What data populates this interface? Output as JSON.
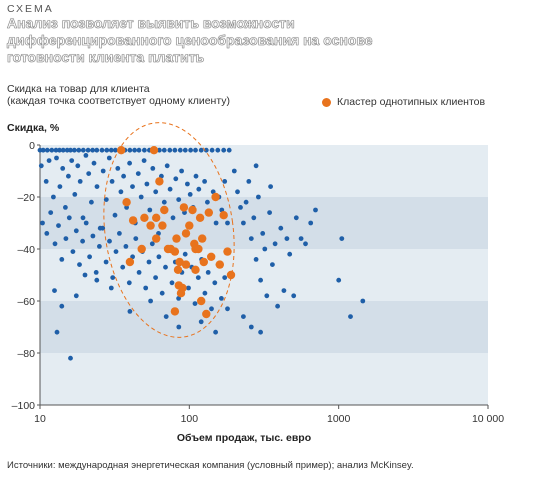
{
  "header": {
    "kicker": "СХЕМА",
    "title": "Анализ позволяет выявить возможности дифференцированного ценообразования на основе готовности клиента платить"
  },
  "chart_header": {
    "subtitle_line1": "Скидка на товар для клиента",
    "subtitle_line2": "(каждая точка соответствует одному клиенту)"
  },
  "footer": {
    "sources": "Источники: международная энергетическая компания (условный пример); анализ McKinsey."
  },
  "colors": {
    "client_point": "#1f5fa8",
    "cluster_point": "#e8731d",
    "band_light": "#e4ecf2",
    "band_dark": "#d3dee8",
    "ellipse": "#e8731d"
  },
  "chart_data": {
    "type": "scatter",
    "title": "Скидка, %",
    "xlabel": "Объем продаж, тыс. евро",
    "ylabel": "Скидка, %",
    "xscale": "log",
    "xlim": [
      10,
      10000
    ],
    "ylim": [
      -100,
      0
    ],
    "xticks": [
      10,
      100,
      1000,
      10000
    ],
    "xtick_labels": [
      "10",
      "100",
      "1000",
      "10 000"
    ],
    "yticks": [
      0,
      -20,
      -40,
      -60,
      -80,
      -100
    ],
    "ytick_labels": [
      "0",
      "–20",
      "–40",
      "–60",
      "–80",
      "–100"
    ],
    "grid": false,
    "legend": {
      "position": "top-right",
      "label": "Кластер однотипных клиентов"
    },
    "series": [
      {
        "name": "",
        "points": [
          [
            10.0,
            -2
          ],
          [
            10.5,
            -2
          ],
          [
            11.2,
            -2
          ],
          [
            12.0,
            -2
          ],
          [
            12.8,
            -2
          ],
          [
            13.5,
            -2
          ],
          [
            14.3,
            -2
          ],
          [
            15.2,
            -2
          ],
          [
            16.0,
            -2
          ],
          [
            17.0,
            -2
          ],
          [
            18.2,
            -2
          ],
          [
            19.5,
            -2
          ],
          [
            21.0,
            -2
          ],
          [
            22.5,
            -2
          ],
          [
            24.0,
            -2
          ],
          [
            26.0,
            -2
          ],
          [
            28.0,
            -2
          ],
          [
            30.0,
            -2
          ],
          [
            32.0,
            -2
          ],
          [
            34.5,
            -2
          ],
          [
            37.0,
            -2
          ],
          [
            40.0,
            -2
          ],
          [
            43.0,
            -2
          ],
          [
            46.0,
            -2
          ],
          [
            50.0,
            -2
          ],
          [
            54.0,
            -2
          ],
          [
            58.0,
            -2
          ],
          [
            63.0,
            -2
          ],
          [
            68.0,
            -2
          ],
          [
            74.0,
            -2
          ],
          [
            80.0,
            -2
          ],
          [
            87.0,
            -2
          ],
          [
            94.0,
            -2
          ],
          [
            102.0,
            -2
          ],
          [
            110.0,
            -2
          ],
          [
            120.0,
            -2
          ],
          [
            130.0,
            -2
          ],
          [
            142.0,
            -2
          ],
          [
            155.0,
            -2
          ],
          [
            170.0,
            -2
          ],
          [
            185.0,
            -2
          ],
          [
            10.2,
            -8
          ],
          [
            11.0,
            -14
          ],
          [
            11.5,
            -6
          ],
          [
            12.3,
            -20
          ],
          [
            12.9,
            -5
          ],
          [
            13.6,
            -16
          ],
          [
            14.2,
            -9
          ],
          [
            14.8,
            -24
          ],
          [
            15.5,
            -12
          ],
          [
            16.3,
            -6
          ],
          [
            17.1,
            -19
          ],
          [
            17.9,
            -8
          ],
          [
            18.6,
            -14
          ],
          [
            19.4,
            -28
          ],
          [
            20.3,
            -4
          ],
          [
            21.2,
            -11
          ],
          [
            22.1,
            -22
          ],
          [
            23.0,
            -7
          ],
          [
            24.1,
            -16
          ],
          [
            25.3,
            -32
          ],
          [
            26.5,
            -10
          ],
          [
            27.8,
            -21
          ],
          [
            29.1,
            -5
          ],
          [
            30.4,
            -14
          ],
          [
            31.8,
            -27
          ],
          [
            33.2,
            -9
          ],
          [
            34.8,
            -18
          ],
          [
            36.3,
            -12
          ],
          [
            38.0,
            -24
          ],
          [
            39.8,
            -7
          ],
          [
            41.6,
            -16
          ],
          [
            43.5,
            -30
          ],
          [
            45.5,
            -11
          ],
          [
            47.6,
            -20
          ],
          [
            49.8,
            -6
          ],
          [
            52.0,
            -15
          ],
          [
            54.4,
            -25
          ],
          [
            56.9,
            -9
          ],
          [
            59.5,
            -18
          ],
          [
            62.2,
            -34
          ],
          [
            65.0,
            -12
          ],
          [
            68.0,
            -22
          ],
          [
            71.1,
            -8
          ],
          [
            74.3,
            -17
          ],
          [
            77.7,
            -28
          ],
          [
            81.2,
            -13
          ],
          [
            84.9,
            -21
          ],
          [
            88.8,
            -10
          ],
          [
            92.8,
            -26
          ],
          [
            97.0,
            -15
          ],
          [
            101.4,
            -19
          ],
          [
            106.0,
            -24
          ],
          [
            110.8,
            -12
          ],
          [
            115.8,
            -17
          ],
          [
            121.0,
            -28
          ],
          [
            126.5,
            -14
          ],
          [
            132.2,
            -22
          ],
          [
            138.2,
            -26
          ],
          [
            144.5,
            -18
          ],
          [
            151.0,
            -30
          ],
          [
            157.8,
            -20
          ],
          [
            165.0,
            -25
          ],
          [
            172.4,
            -14
          ],
          [
            180.2,
            -30
          ],
          [
            10.4,
            -30
          ],
          [
            11.1,
            -34
          ],
          [
            11.8,
            -26
          ],
          [
            12.6,
            -38
          ],
          [
            13.3,
            -31
          ],
          [
            14.0,
            -44
          ],
          [
            14.9,
            -36
          ],
          [
            15.7,
            -28
          ],
          [
            16.6,
            -41
          ],
          [
            17.5,
            -33
          ],
          [
            18.4,
            -46
          ],
          [
            19.3,
            -37
          ],
          [
            20.4,
            -30
          ],
          [
            21.5,
            -43
          ],
          [
            22.6,
            -35
          ],
          [
            23.8,
            -49
          ],
          [
            25.0,
            -39
          ],
          [
            26.3,
            -32
          ],
          [
            27.7,
            -45
          ],
          [
            29.2,
            -37
          ],
          [
            30.7,
            -51
          ],
          [
            32.3,
            -41
          ],
          [
            34.0,
            -34
          ],
          [
            35.8,
            -47
          ],
          [
            37.6,
            -39
          ],
          [
            39.6,
            -53
          ],
          [
            41.7,
            -43
          ],
          [
            43.8,
            -36
          ],
          [
            46.1,
            -49
          ],
          [
            48.5,
            -41
          ],
          [
            51.0,
            -55
          ],
          [
            53.7,
            -45
          ],
          [
            56.5,
            -38
          ],
          [
            59.4,
            -51
          ],
          [
            62.5,
            -43
          ],
          [
            65.8,
            -57
          ],
          [
            69.2,
            -47
          ],
          [
            72.8,
            -40
          ],
          [
            76.6,
            -53
          ],
          [
            80.6,
            -45
          ],
          [
            84.8,
            -59
          ],
          [
            89.2,
            -49
          ],
          [
            93.8,
            -42
          ],
          [
            98.7,
            -55
          ],
          [
            103.8,
            -47
          ],
          [
            109.2,
            -61
          ],
          [
            114.9,
            -51
          ],
          [
            120.9,
            -44
          ],
          [
            127.2,
            -57
          ],
          [
            133.8,
            -49
          ],
          [
            140.8,
            -63
          ],
          [
            148.1,
            -53
          ],
          [
            155.8,
            -46
          ],
          [
            163.9,
            -59
          ],
          [
            172.4,
            -51
          ],
          [
            17.5,
            -58
          ],
          [
            20.0,
            -50
          ],
          [
            24.0,
            -52
          ],
          [
            13.0,
            -72
          ],
          [
            16.0,
            -82
          ],
          [
            14.0,
            -62
          ],
          [
            12.5,
            -56
          ],
          [
            30.0,
            -55
          ],
          [
            40.0,
            -64
          ],
          [
            55.0,
            -60
          ],
          [
            70.0,
            -66
          ],
          [
            85.0,
            -70
          ],
          [
            120.0,
            -68
          ],
          [
            150.0,
            -72
          ],
          [
            180.0,
            -63
          ],
          [
            200.0,
            -10
          ],
          [
            210.0,
            -18
          ],
          [
            220.0,
            -24
          ],
          [
            230.0,
            -30
          ],
          [
            240.0,
            -22
          ],
          [
            250.0,
            -14
          ],
          [
            260.0,
            -36
          ],
          [
            270.0,
            -28
          ],
          [
            280.0,
            -44
          ],
          [
            290.0,
            -20
          ],
          [
            300.0,
            -52
          ],
          [
            310.0,
            -34
          ],
          [
            320.0,
            -40
          ],
          [
            330.0,
            -58
          ],
          [
            345.0,
            -26
          ],
          [
            360.0,
            -46
          ],
          [
            375.0,
            -38
          ],
          [
            390.0,
            -62
          ],
          [
            410.0,
            -32
          ],
          [
            430.0,
            -56
          ],
          [
            450.0,
            -36
          ],
          [
            470.0,
            -42
          ],
          [
            500.0,
            -58
          ],
          [
            520.0,
            -28
          ],
          [
            560.0,
            -36
          ],
          [
            600.0,
            -38
          ],
          [
            650.0,
            -30
          ],
          [
            700.0,
            -25
          ],
          [
            280.0,
            -8
          ],
          [
            350.0,
            -16
          ],
          [
            230.0,
            -66
          ],
          [
            260.0,
            -70
          ],
          [
            300.0,
            -72
          ],
          [
            1000.0,
            -52
          ],
          [
            1050.0,
            -36
          ],
          [
            1200.0,
            -66
          ],
          [
            1450.0,
            -60
          ]
        ]
      },
      {
        "name": "Кластер однотипных клиентов",
        "points": [
          [
            35,
            -2
          ],
          [
            58,
            -2
          ],
          [
            38,
            -22
          ],
          [
            42,
            -29
          ],
          [
            48,
            -40
          ],
          [
            50,
            -28
          ],
          [
            55,
            -31
          ],
          [
            60,
            -36
          ],
          [
            60,
            -28
          ],
          [
            63,
            -14
          ],
          [
            66,
            -31
          ],
          [
            72,
            -40
          ],
          [
            75,
            -40
          ],
          [
            80,
            -41
          ],
          [
            82,
            -36
          ],
          [
            84,
            -48
          ],
          [
            85,
            -54
          ],
          [
            86,
            -45
          ],
          [
            88,
            -57
          ],
          [
            90,
            -55
          ],
          [
            92,
            -24
          ],
          [
            95,
            -34
          ],
          [
            100,
            -31
          ],
          [
            105,
            -25
          ],
          [
            108,
            -38
          ],
          [
            110,
            -40
          ],
          [
            115,
            -40
          ],
          [
            118,
            -28
          ],
          [
            120,
            -60
          ],
          [
            122,
            -36
          ],
          [
            125,
            -45
          ],
          [
            135,
            -26
          ],
          [
            140,
            -43
          ],
          [
            150,
            -20
          ],
          [
            160,
            -46
          ],
          [
            170,
            -27
          ],
          [
            180,
            -41
          ],
          [
            190,
            -50
          ],
          [
            80,
            -64
          ],
          [
            110,
            -48
          ],
          [
            95,
            -46
          ],
          [
            130,
            -65
          ],
          [
            40,
            -45
          ],
          [
            68,
            -25
          ]
        ]
      }
    ]
  }
}
